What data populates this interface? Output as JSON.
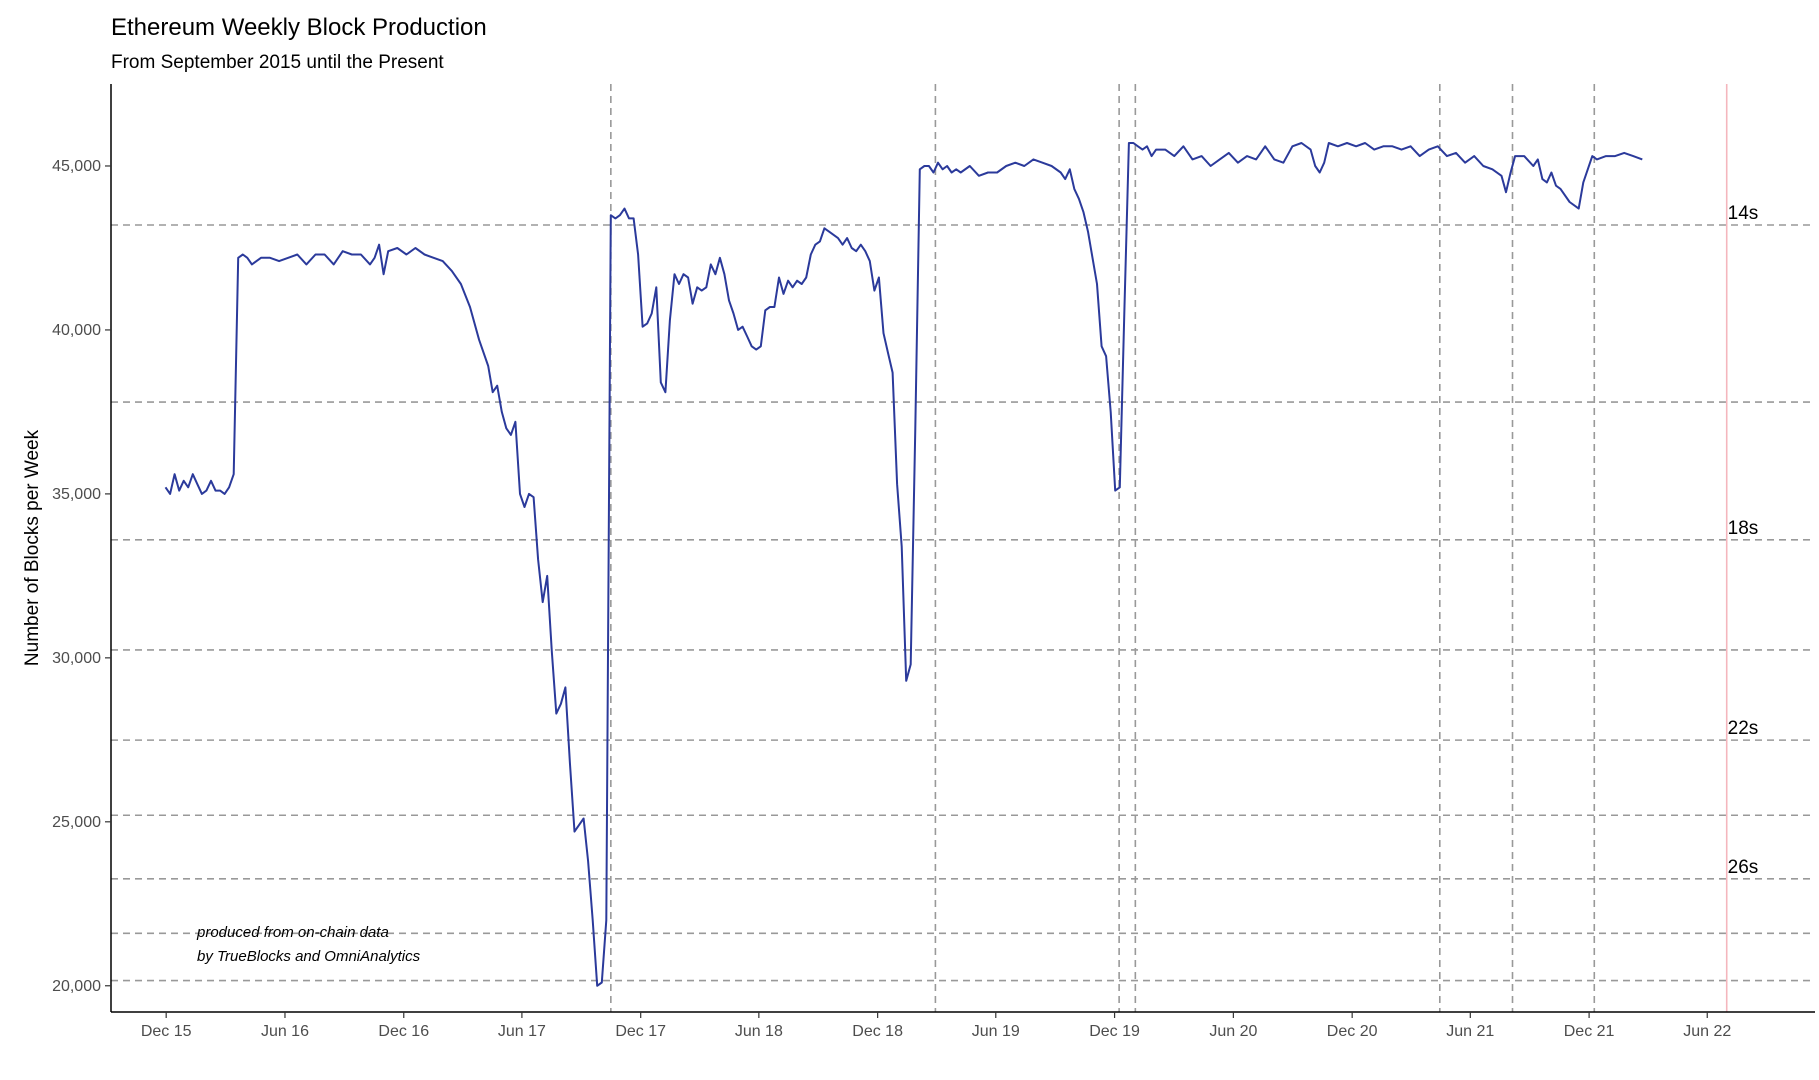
{
  "chart_data": {
    "type": "line",
    "title": "Ethereum Weekly Block Production",
    "subtitle": "From September 2015 until the Present",
    "xlabel": "",
    "ylabel": "Number of Blocks per Week",
    "xlim": [
      "2015-09-07",
      "2022-11-14"
    ],
    "ylim": [
      19200,
      47500
    ],
    "x_ticks": [
      {
        "date": "2015-12-01",
        "label": "Dec 15"
      },
      {
        "date": "2016-06-01",
        "label": "Jun 16"
      },
      {
        "date": "2016-12-01",
        "label": "Dec 16"
      },
      {
        "date": "2017-06-01",
        "label": "Jun 17"
      },
      {
        "date": "2017-12-01",
        "label": "Dec 17"
      },
      {
        "date": "2018-06-01",
        "label": "Jun 18"
      },
      {
        "date": "2018-12-01",
        "label": "Dec 18"
      },
      {
        "date": "2019-06-01",
        "label": "Jun 19"
      },
      {
        "date": "2019-12-01",
        "label": "Dec 19"
      },
      {
        "date": "2020-06-01",
        "label": "Jun 20"
      },
      {
        "date": "2020-12-01",
        "label": "Dec 20"
      },
      {
        "date": "2021-06-01",
        "label": "Jun 21"
      },
      {
        "date": "2021-12-01",
        "label": "Dec 21"
      },
      {
        "date": "2022-06-01",
        "label": "Jun 22"
      }
    ],
    "y_ticks": [
      {
        "value": 20000,
        "label": "20,000"
      },
      {
        "value": 25000,
        "label": "25,000"
      },
      {
        "value": 30000,
        "label": "30,000"
      },
      {
        "value": 35000,
        "label": "35,000"
      },
      {
        "value": 40000,
        "label": "40,000"
      },
      {
        "value": 45000,
        "label": "45,000"
      }
    ],
    "block_time_lines": [
      {
        "value": 43200,
        "label": "14s"
      },
      {
        "value": 37800,
        "label": ""
      },
      {
        "value": 33600,
        "label": "18s"
      },
      {
        "value": 30240,
        "label": ""
      },
      {
        "value": 27491,
        "label": "22s"
      },
      {
        "value": 25200,
        "label": ""
      },
      {
        "value": 23262,
        "label": "26s"
      },
      {
        "value": 21600,
        "label": ""
      },
      {
        "value": 20160,
        "label": ""
      }
    ],
    "event_lines": [
      "2017-10-16",
      "2019-02-28",
      "2019-12-08",
      "2020-01-02",
      "2021-04-15",
      "2021-08-05",
      "2021-12-09"
    ],
    "present_line": "2022-07-01",
    "line_color": "#2b3a9b",
    "event_line_color": "#999999",
    "present_line_color": "#f4b6bd",
    "annotation": [
      "produced from on-chain data",
      "by TrueBlocks and OmniAnalytics"
    ],
    "grid": false,
    "legend": "none",
    "series": [
      {
        "name": "",
        "points": [
          [
            "2015-11-30",
            35200
          ],
          [
            "2015-12-07",
            35000
          ],
          [
            "2015-12-14",
            35600
          ],
          [
            "2015-12-21",
            35100
          ],
          [
            "2015-12-28",
            35400
          ],
          [
            "2016-01-04",
            35200
          ],
          [
            "2016-01-11",
            35600
          ],
          [
            "2016-01-18",
            35300
          ],
          [
            "2016-01-25",
            35000
          ],
          [
            "2016-02-01",
            35100
          ],
          [
            "2016-02-08",
            35400
          ],
          [
            "2016-02-15",
            35100
          ],
          [
            "2016-02-22",
            35100
          ],
          [
            "2016-02-29",
            35000
          ],
          [
            "2016-03-07",
            35200
          ],
          [
            "2016-03-14",
            35600
          ],
          [
            "2016-03-21",
            42200
          ],
          [
            "2016-03-28",
            42300
          ],
          [
            "2016-04-04",
            42200
          ],
          [
            "2016-04-11",
            42000
          ],
          [
            "2016-04-25",
            42200
          ],
          [
            "2016-05-09",
            42200
          ],
          [
            "2016-05-23",
            42100
          ],
          [
            "2016-06-06",
            42200
          ],
          [
            "2016-06-20",
            42300
          ],
          [
            "2016-07-04",
            42000
          ],
          [
            "2016-07-18",
            42300
          ],
          [
            "2016-08-01",
            42300
          ],
          [
            "2016-08-15",
            42000
          ],
          [
            "2016-08-29",
            42400
          ],
          [
            "2016-09-12",
            42300
          ],
          [
            "2016-09-26",
            42300
          ],
          [
            "2016-10-10",
            42000
          ],
          [
            "2016-10-17",
            42200
          ],
          [
            "2016-10-24",
            42600
          ],
          [
            "2016-10-31",
            41700
          ],
          [
            "2016-11-07",
            42400
          ],
          [
            "2016-11-21",
            42500
          ],
          [
            "2016-12-05",
            42300
          ],
          [
            "2016-12-19",
            42500
          ],
          [
            "2017-01-02",
            42300
          ],
          [
            "2017-01-16",
            42200
          ],
          [
            "2017-01-30",
            42100
          ],
          [
            "2017-02-13",
            41800
          ],
          [
            "2017-02-27",
            41400
          ],
          [
            "2017-03-13",
            40700
          ],
          [
            "2017-03-27",
            39700
          ],
          [
            "2017-04-10",
            38900
          ],
          [
            "2017-04-17",
            38100
          ],
          [
            "2017-04-24",
            38300
          ],
          [
            "2017-05-01",
            37500
          ],
          [
            "2017-05-08",
            37000
          ],
          [
            "2017-05-15",
            36800
          ],
          [
            "2017-05-22",
            37200
          ],
          [
            "2017-05-29",
            35000
          ],
          [
            "2017-06-05",
            34600
          ],
          [
            "2017-06-12",
            35000
          ],
          [
            "2017-06-19",
            34900
          ],
          [
            "2017-06-26",
            33000
          ],
          [
            "2017-07-03",
            31700
          ],
          [
            "2017-07-10",
            32500
          ],
          [
            "2017-07-17",
            30200
          ],
          [
            "2017-07-24",
            28300
          ],
          [
            "2017-07-31",
            28600
          ],
          [
            "2017-08-07",
            29100
          ],
          [
            "2017-08-14",
            26800
          ],
          [
            "2017-08-21",
            24700
          ],
          [
            "2017-08-28",
            24900
          ],
          [
            "2017-09-04",
            25100
          ],
          [
            "2017-09-11",
            23800
          ],
          [
            "2017-09-18",
            22000
          ],
          [
            "2017-09-25",
            20000
          ],
          [
            "2017-10-02",
            20100
          ],
          [
            "2017-10-09",
            22000
          ],
          [
            "2017-10-16",
            43500
          ],
          [
            "2017-10-23",
            43400
          ],
          [
            "2017-10-30",
            43500
          ],
          [
            "2017-11-06",
            43700
          ],
          [
            "2017-11-13",
            43400
          ],
          [
            "2017-11-20",
            43400
          ],
          [
            "2017-11-27",
            42300
          ],
          [
            "2017-12-04",
            40100
          ],
          [
            "2017-12-11",
            40200
          ],
          [
            "2017-12-18",
            40500
          ],
          [
            "2017-12-25",
            41300
          ],
          [
            "2018-01-01",
            38400
          ],
          [
            "2018-01-08",
            38100
          ],
          [
            "2018-01-15",
            40300
          ],
          [
            "2018-01-22",
            41700
          ],
          [
            "2018-01-29",
            41400
          ],
          [
            "2018-02-05",
            41700
          ],
          [
            "2018-02-12",
            41600
          ],
          [
            "2018-02-19",
            40800
          ],
          [
            "2018-02-26",
            41300
          ],
          [
            "2018-03-05",
            41200
          ],
          [
            "2018-03-12",
            41300
          ],
          [
            "2018-03-19",
            42000
          ],
          [
            "2018-03-26",
            41700
          ],
          [
            "2018-04-02",
            42200
          ],
          [
            "2018-04-09",
            41700
          ],
          [
            "2018-04-16",
            40900
          ],
          [
            "2018-04-23",
            40500
          ],
          [
            "2018-04-30",
            40000
          ],
          [
            "2018-05-07",
            40100
          ],
          [
            "2018-05-14",
            39800
          ],
          [
            "2018-05-21",
            39500
          ],
          [
            "2018-05-28",
            39400
          ],
          [
            "2018-06-04",
            39500
          ],
          [
            "2018-06-11",
            40600
          ],
          [
            "2018-06-18",
            40700
          ],
          [
            "2018-06-25",
            40700
          ],
          [
            "2018-07-02",
            41600
          ],
          [
            "2018-07-09",
            41100
          ],
          [
            "2018-07-16",
            41500
          ],
          [
            "2018-07-23",
            41300
          ],
          [
            "2018-07-30",
            41500
          ],
          [
            "2018-08-06",
            41400
          ],
          [
            "2018-08-13",
            41600
          ],
          [
            "2018-08-20",
            42300
          ],
          [
            "2018-08-27",
            42600
          ],
          [
            "2018-09-03",
            42700
          ],
          [
            "2018-09-10",
            43100
          ],
          [
            "2018-09-17",
            43000
          ],
          [
            "2018-09-24",
            42900
          ],
          [
            "2018-10-01",
            42800
          ],
          [
            "2018-10-08",
            42600
          ],
          [
            "2018-10-15",
            42800
          ],
          [
            "2018-10-22",
            42500
          ],
          [
            "2018-10-29",
            42400
          ],
          [
            "2018-11-05",
            42600
          ],
          [
            "2018-11-12",
            42400
          ],
          [
            "2018-11-19",
            42100
          ],
          [
            "2018-11-26",
            41200
          ],
          [
            "2018-12-03",
            41600
          ],
          [
            "2018-12-10",
            39900
          ],
          [
            "2018-12-17",
            39300
          ],
          [
            "2018-12-24",
            38700
          ],
          [
            "2018-12-31",
            35300
          ],
          [
            "2019-01-07",
            33400
          ],
          [
            "2019-01-14",
            29300
          ],
          [
            "2019-01-21",
            29800
          ],
          [
            "2019-01-28",
            37000
          ],
          [
            "2019-02-04",
            44900
          ],
          [
            "2019-02-11",
            45000
          ],
          [
            "2019-02-18",
            45000
          ],
          [
            "2019-02-25",
            44800
          ],
          [
            "2019-03-04",
            45100
          ],
          [
            "2019-03-11",
            44900
          ],
          [
            "2019-03-18",
            45000
          ],
          [
            "2019-03-25",
            44800
          ],
          [
            "2019-04-01",
            44900
          ],
          [
            "2019-04-08",
            44800
          ],
          [
            "2019-04-22",
            45000
          ],
          [
            "2019-05-06",
            44700
          ],
          [
            "2019-05-20",
            44800
          ],
          [
            "2019-06-03",
            44800
          ],
          [
            "2019-06-17",
            45000
          ],
          [
            "2019-07-01",
            45100
          ],
          [
            "2019-07-15",
            45000
          ],
          [
            "2019-07-29",
            45200
          ],
          [
            "2019-08-12",
            45100
          ],
          [
            "2019-08-26",
            45000
          ],
          [
            "2019-09-09",
            44800
          ],
          [
            "2019-09-16",
            44600
          ],
          [
            "2019-09-23",
            44900
          ],
          [
            "2019-09-30",
            44300
          ],
          [
            "2019-10-07",
            44000
          ],
          [
            "2019-10-14",
            43600
          ],
          [
            "2019-10-21",
            43000
          ],
          [
            "2019-10-28",
            42200
          ],
          [
            "2019-11-04",
            41400
          ],
          [
            "2019-11-11",
            39500
          ],
          [
            "2019-11-18",
            39200
          ],
          [
            "2019-11-25",
            37500
          ],
          [
            "2019-12-02",
            35100
          ],
          [
            "2019-12-09",
            35200
          ],
          [
            "2019-12-16",
            40500
          ],
          [
            "2019-12-23",
            45700
          ],
          [
            "2019-12-30",
            45700
          ],
          [
            "2020-01-06",
            45600
          ],
          [
            "2020-01-13",
            45500
          ],
          [
            "2020-01-20",
            45600
          ],
          [
            "2020-01-27",
            45300
          ],
          [
            "2020-02-03",
            45500
          ],
          [
            "2020-02-17",
            45500
          ],
          [
            "2020-03-02",
            45300
          ],
          [
            "2020-03-16",
            45600
          ],
          [
            "2020-03-30",
            45200
          ],
          [
            "2020-04-13",
            45300
          ],
          [
            "2020-04-27",
            45000
          ],
          [
            "2020-05-11",
            45200
          ],
          [
            "2020-05-25",
            45400
          ],
          [
            "2020-06-08",
            45100
          ],
          [
            "2020-06-22",
            45300
          ],
          [
            "2020-07-06",
            45200
          ],
          [
            "2020-07-20",
            45600
          ],
          [
            "2020-08-03",
            45200
          ],
          [
            "2020-08-17",
            45100
          ],
          [
            "2020-08-31",
            45600
          ],
          [
            "2020-09-14",
            45700
          ],
          [
            "2020-09-28",
            45500
          ],
          [
            "2020-10-05",
            45000
          ],
          [
            "2020-10-12",
            44800
          ],
          [
            "2020-10-19",
            45100
          ],
          [
            "2020-10-26",
            45700
          ],
          [
            "2020-11-09",
            45600
          ],
          [
            "2020-11-23",
            45700
          ],
          [
            "2020-12-07",
            45600
          ],
          [
            "2020-12-21",
            45700
          ],
          [
            "2021-01-04",
            45500
          ],
          [
            "2021-01-18",
            45600
          ],
          [
            "2021-02-01",
            45600
          ],
          [
            "2021-02-15",
            45500
          ],
          [
            "2021-03-01",
            45600
          ],
          [
            "2021-03-15",
            45300
          ],
          [
            "2021-03-29",
            45500
          ],
          [
            "2021-04-12",
            45600
          ],
          [
            "2021-04-26",
            45300
          ],
          [
            "2021-05-10",
            45400
          ],
          [
            "2021-05-24",
            45100
          ],
          [
            "2021-06-07",
            45300
          ],
          [
            "2021-06-21",
            45000
          ],
          [
            "2021-07-05",
            44900
          ],
          [
            "2021-07-19",
            44700
          ],
          [
            "2021-07-26",
            44200
          ],
          [
            "2021-08-02",
            44800
          ],
          [
            "2021-08-09",
            45300
          ],
          [
            "2021-08-23",
            45300
          ],
          [
            "2021-09-06",
            45000
          ],
          [
            "2021-09-13",
            45200
          ],
          [
            "2021-09-20",
            44600
          ],
          [
            "2021-09-27",
            44500
          ],
          [
            "2021-10-04",
            44800
          ],
          [
            "2021-10-11",
            44400
          ],
          [
            "2021-10-18",
            44300
          ],
          [
            "2021-11-01",
            43900
          ],
          [
            "2021-11-15",
            43700
          ],
          [
            "2021-11-22",
            44500
          ],
          [
            "2021-12-06",
            45300
          ],
          [
            "2021-12-13",
            45200
          ],
          [
            "2021-12-27",
            45300
          ],
          [
            "2022-01-10",
            45300
          ],
          [
            "2022-01-24",
            45400
          ],
          [
            "2022-02-07",
            45300
          ],
          [
            "2022-02-21",
            45200
          ]
        ]
      }
    ]
  }
}
